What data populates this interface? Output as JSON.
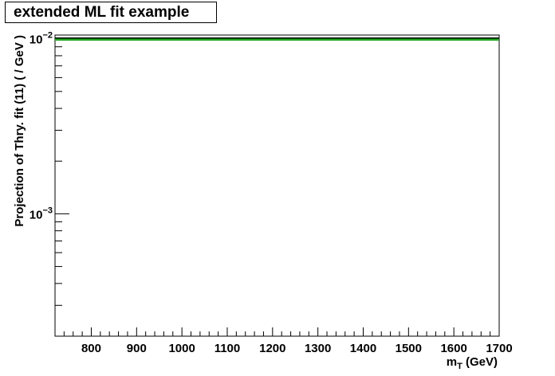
{
  "chart_data": {
    "type": "line",
    "title": "extended ML fit example",
    "xlabel": "m_T (GeV)",
    "ylabel": "Projection of Thry. fit (11) ( / GeV )",
    "xlim": [
      720,
      1700
    ],
    "ylim": [
      0.0002,
      0.0105
    ],
    "yscale": "log",
    "x_ticks": [
      800,
      900,
      1000,
      1100,
      1200,
      1300,
      1400,
      1500,
      1600,
      1700
    ],
    "y_ticks": [
      {
        "value": 0.001,
        "base": "10",
        "exp": "−3"
      },
      {
        "value": 0.01,
        "base": "10",
        "exp": "−2"
      }
    ],
    "series": [
      {
        "color": "#22aa22",
        "x": [
          720,
          1700
        ],
        "y": [
          0.0099,
          0.0099
        ]
      },
      {
        "color": "#000000",
        "x": [
          720,
          1700
        ],
        "y": [
          0.0101,
          0.0101
        ]
      }
    ],
    "grid": false
  }
}
